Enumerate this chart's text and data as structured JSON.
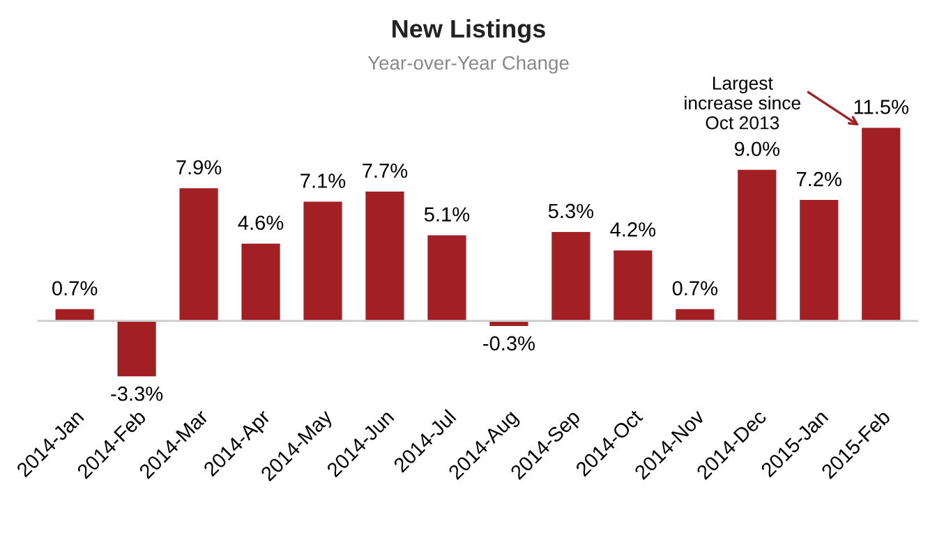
{
  "chart_data": {
    "type": "bar",
    "title": "New Listings",
    "subtitle": "Year-over-Year Change",
    "categories": [
      "2014-Jan",
      "2014-Feb",
      "2014-Mar",
      "2014-Apr",
      "2014-May",
      "2014-Jun",
      "2014-Jul",
      "2014-Aug",
      "2014-Sep",
      "2014-Oct",
      "2014-Nov",
      "2014-Dec",
      "2015-Jan",
      "2015-Feb"
    ],
    "values": [
      0.7,
      -3.3,
      7.9,
      4.6,
      7.1,
      7.7,
      5.1,
      -0.3,
      5.3,
      4.2,
      0.7,
      9.0,
      7.2,
      11.5
    ],
    "value_labels": [
      "0.7%",
      "-3.3%",
      "7.9%",
      "4.6%",
      "7.1%",
      "7.7%",
      "5.1%",
      "-0.3%",
      "5.3%",
      "4.2%",
      "0.7%",
      "9.0%",
      "7.2%",
      "11.5%"
    ],
    "color": "#a21f24",
    "annotations": [
      {
        "text": "Largest\nincrease since\nOct 2013",
        "x": "2015-Feb",
        "y": 11.5
      }
    ],
    "grid": false,
    "legend": false
  }
}
